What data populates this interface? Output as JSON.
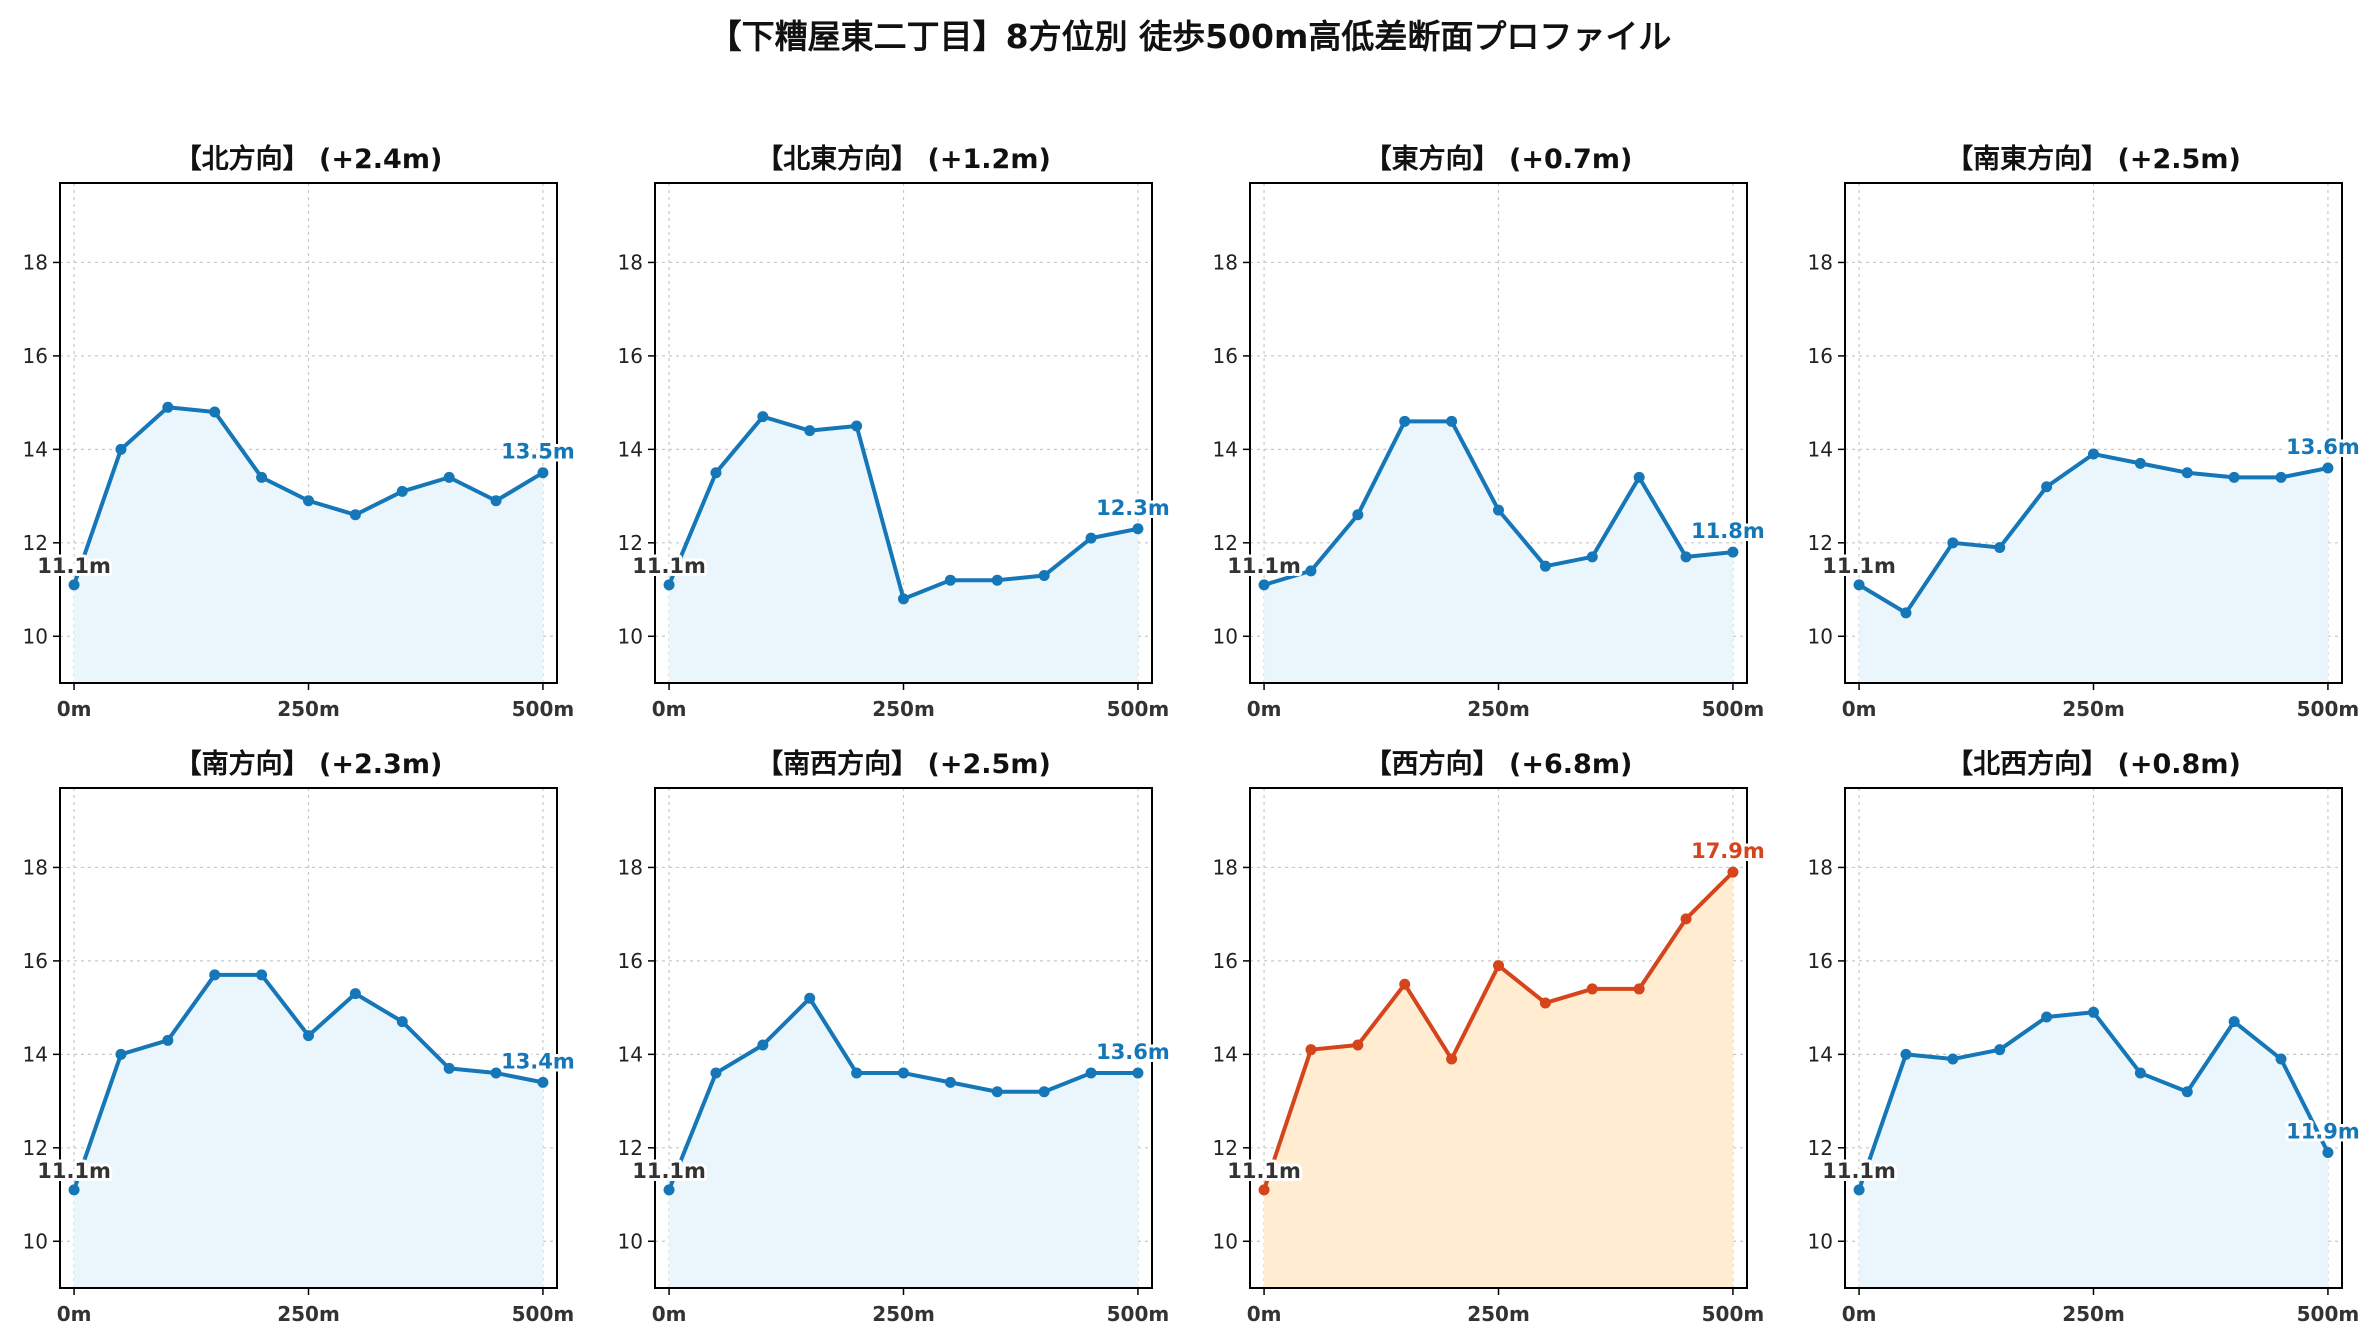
{
  "title": "【下糟屋東二丁目】8方位別 徒歩500m高低差断面プロファイル",
  "colors": {
    "line_default": "#1577b7",
    "fill_default": "#eaf6fb",
    "line_highlight": "#d6441c",
    "fill_highlight": "#ffecd1",
    "start_label": "#333333",
    "grid": "#c8c8c8"
  },
  "chart_data": [
    {
      "type": "line",
      "title": "【北方向】 (+2.4m)",
      "x": [
        0,
        50,
        100,
        150,
        200,
        250,
        300,
        350,
        400,
        450,
        500
      ],
      "values": [
        11.1,
        14.0,
        14.9,
        14.8,
        13.4,
        12.9,
        12.6,
        13.1,
        13.4,
        12.9,
        13.5
      ],
      "start_label": "11.1m",
      "end_label": "13.5m",
      "highlight": false
    },
    {
      "type": "line",
      "title": "【北東方向】 (+1.2m)",
      "x": [
        0,
        50,
        100,
        150,
        200,
        250,
        300,
        350,
        400,
        450,
        500
      ],
      "values": [
        11.1,
        13.5,
        14.7,
        14.4,
        14.5,
        10.8,
        11.2,
        11.2,
        11.3,
        12.1,
        12.3
      ],
      "start_label": "11.1m",
      "end_label": "12.3m",
      "highlight": false
    },
    {
      "type": "line",
      "title": "【東方向】 (+0.7m)",
      "x": [
        0,
        50,
        100,
        150,
        200,
        250,
        300,
        350,
        400,
        450,
        500
      ],
      "values": [
        11.1,
        11.4,
        12.6,
        14.6,
        14.6,
        12.7,
        11.5,
        11.7,
        13.4,
        11.7,
        11.8
      ],
      "start_label": "11.1m",
      "end_label": "11.8m",
      "highlight": false
    },
    {
      "type": "line",
      "title": "【南東方向】 (+2.5m)",
      "x": [
        0,
        50,
        100,
        150,
        200,
        250,
        300,
        350,
        400,
        450,
        500
      ],
      "values": [
        11.1,
        10.5,
        12.0,
        11.9,
        13.2,
        13.9,
        13.7,
        13.5,
        13.4,
        13.4,
        13.6
      ],
      "start_label": "11.1m",
      "end_label": "13.6m",
      "highlight": false
    },
    {
      "type": "line",
      "title": "【南方向】 (+2.3m)",
      "x": [
        0,
        50,
        100,
        150,
        200,
        250,
        300,
        350,
        400,
        450,
        500
      ],
      "values": [
        11.1,
        14.0,
        14.3,
        15.7,
        15.7,
        14.4,
        15.3,
        14.7,
        13.7,
        13.6,
        13.4
      ],
      "start_label": "11.1m",
      "end_label": "13.4m",
      "highlight": false
    },
    {
      "type": "line",
      "title": "【南西方向】 (+2.5m)",
      "x": [
        0,
        50,
        100,
        150,
        200,
        250,
        300,
        350,
        400,
        450,
        500
      ],
      "values": [
        11.1,
        13.6,
        14.2,
        15.2,
        13.6,
        13.6,
        13.4,
        13.2,
        13.2,
        13.6,
        13.6
      ],
      "start_label": "11.1m",
      "end_label": "13.6m",
      "highlight": false
    },
    {
      "type": "line",
      "title": "【西方向】 (+6.8m)",
      "x": [
        0,
        50,
        100,
        150,
        200,
        250,
        300,
        350,
        400,
        450,
        500
      ],
      "values": [
        11.1,
        14.1,
        14.2,
        15.5,
        13.9,
        15.9,
        15.1,
        15.4,
        15.4,
        16.9,
        17.9
      ],
      "start_label": "11.1m",
      "end_label": "17.9m",
      "highlight": true
    },
    {
      "type": "line",
      "title": "【北西方向】 (+0.8m)",
      "x": [
        0,
        50,
        100,
        150,
        200,
        250,
        300,
        350,
        400,
        450,
        500
      ],
      "values": [
        11.1,
        14.0,
        13.9,
        14.1,
        14.8,
        14.9,
        13.6,
        13.2,
        14.7,
        13.9,
        11.9
      ],
      "start_label": "11.1m",
      "end_label": "11.9m",
      "highlight": false
    }
  ],
  "axes": {
    "xlim": [
      -15,
      515
    ],
    "ylim": [
      9.0,
      19.7
    ],
    "xticks": [
      0,
      250,
      500
    ],
    "xtick_labels": [
      "0m",
      "250m",
      "500m"
    ],
    "yticks": [
      10,
      12,
      14,
      16,
      18
    ],
    "ytick_labels": [
      "10",
      "12",
      "14",
      "16",
      "18"
    ],
    "grid": true
  }
}
